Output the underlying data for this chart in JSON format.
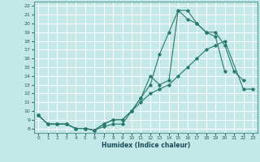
{
  "xlabel": "Humidex (Indice chaleur)",
  "bg_color": "#c4e8e8",
  "grid_color": "#ffffff",
  "line_color": "#2a7a6a",
  "xlim": [
    -0.5,
    23.5
  ],
  "ylim": [
    7.5,
    22.5
  ],
  "xticks": [
    0,
    1,
    2,
    3,
    4,
    5,
    6,
    7,
    8,
    9,
    10,
    11,
    12,
    13,
    14,
    15,
    16,
    17,
    18,
    19,
    20,
    21,
    22,
    23
  ],
  "yticks": [
    8,
    9,
    10,
    11,
    12,
    13,
    14,
    15,
    16,
    17,
    18,
    19,
    20,
    21,
    22
  ],
  "series1_x": [
    0,
    1,
    2,
    3,
    4,
    5,
    6,
    7,
    8,
    9,
    10,
    11,
    12,
    13,
    14,
    15,
    16,
    17,
    18,
    19,
    20
  ],
  "series1_y": [
    9.5,
    8.5,
    8.5,
    8.5,
    8.0,
    8.0,
    7.8,
    8.2,
    8.5,
    8.5,
    10.0,
    11.5,
    13.0,
    16.5,
    19.0,
    21.5,
    20.5,
    20.0,
    19.0,
    18.5,
    14.5
  ],
  "series2_x": [
    0,
    1,
    2,
    3,
    4,
    5,
    6,
    7,
    8,
    9,
    10,
    11,
    12,
    13,
    14,
    15,
    16,
    17,
    18,
    19,
    20,
    21,
    22
  ],
  "series2_y": [
    9.5,
    8.5,
    8.5,
    8.5,
    8.0,
    8.0,
    7.8,
    8.5,
    9.0,
    9.0,
    10.0,
    11.5,
    14.0,
    13.0,
    13.5,
    21.5,
    21.5,
    20.0,
    19.0,
    19.0,
    17.5,
    14.5,
    13.5
  ],
  "series3_x": [
    0,
    1,
    2,
    3,
    4,
    5,
    6,
    7,
    8,
    9,
    10,
    11,
    12,
    13,
    14,
    15,
    16,
    17,
    18,
    19,
    20,
    22,
    23
  ],
  "series3_y": [
    9.5,
    8.5,
    8.5,
    8.5,
    8.0,
    8.0,
    7.8,
    8.5,
    9.0,
    9.0,
    10.0,
    11.0,
    12.0,
    12.5,
    13.0,
    14.0,
    15.0,
    16.0,
    17.0,
    17.5,
    18.0,
    12.5,
    12.5
  ]
}
